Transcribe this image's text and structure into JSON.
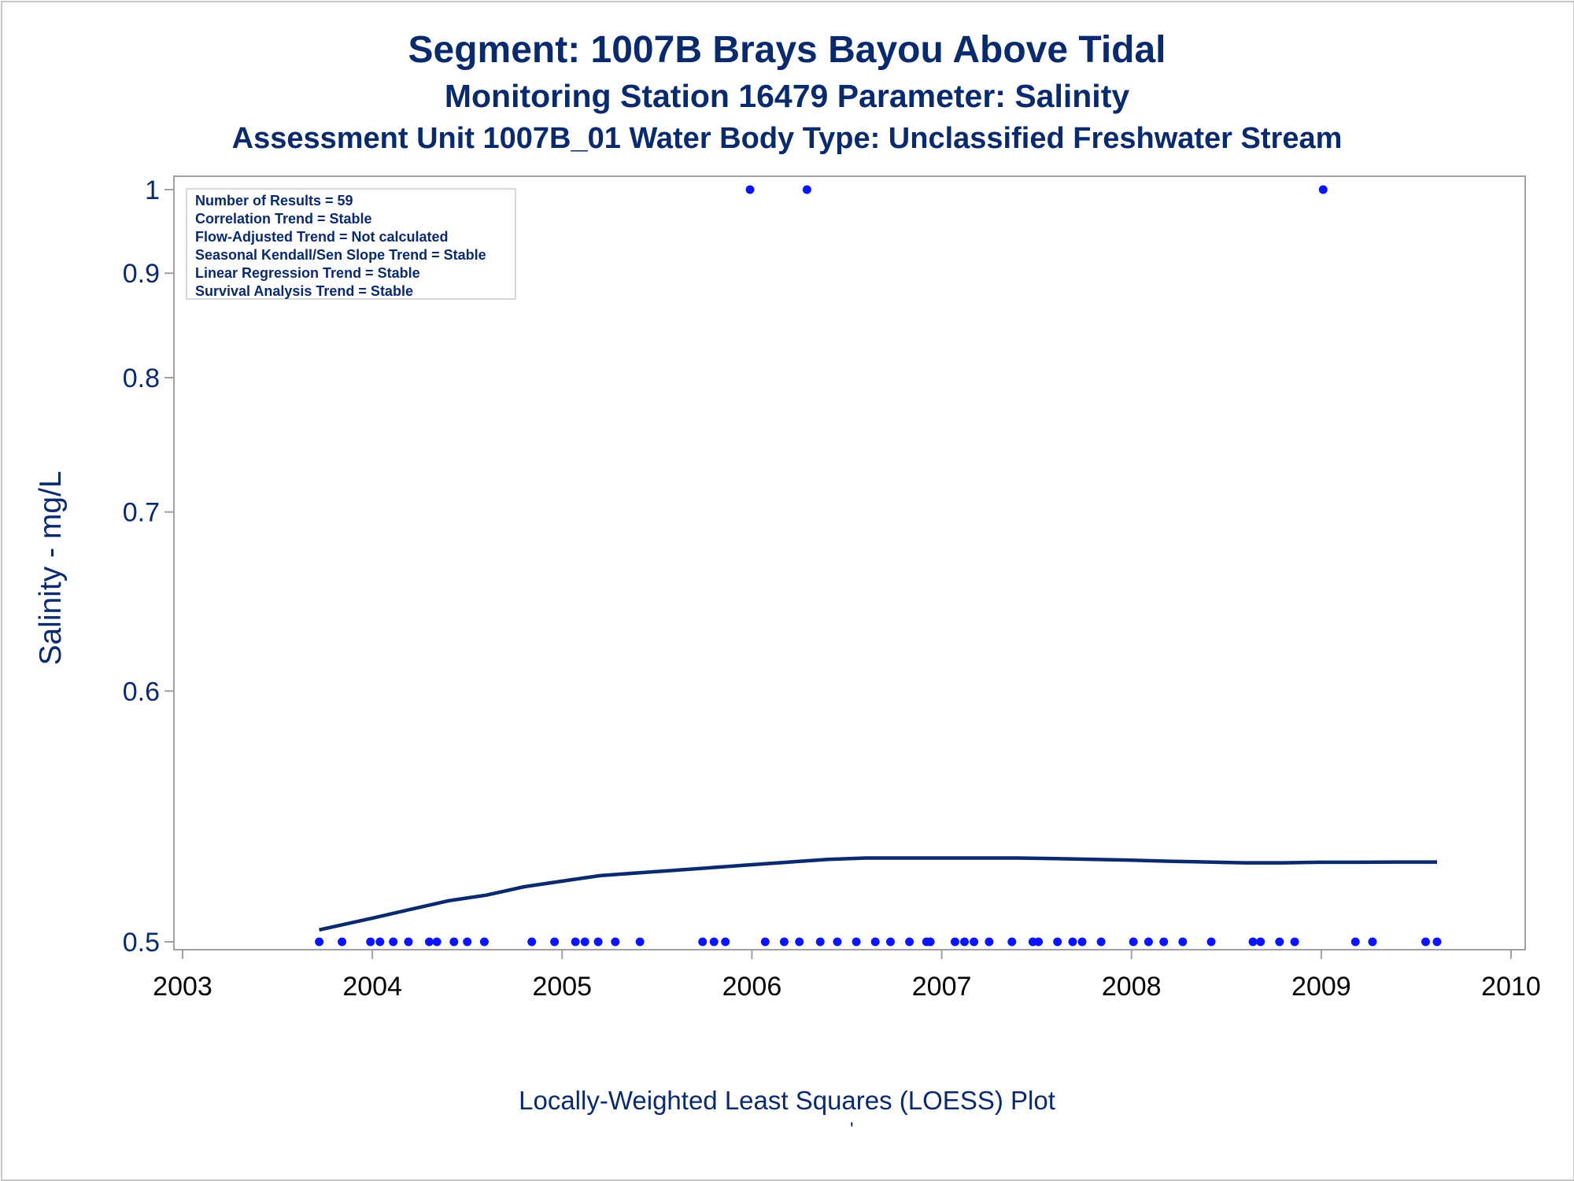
{
  "titles": {
    "line1": "Segment: 1007B  Brays Bayou Above Tidal",
    "line2": "Monitoring Station 16479 Parameter: Salinity",
    "line3": "Assessment Unit 1007B_01   Water Body Type: Unclassified Freshwater Stream"
  },
  "stats": [
    "Number of Results = 59",
    "Correlation Trend = Stable",
    "Flow-Adjusted Trend = Not calculated",
    "Seasonal Kendall/Sen Slope Trend = Stable",
    "Linear Regression Trend = Stable",
    "Survival Analysis Trend = Stable"
  ],
  "footnote": "Locally-Weighted Least Squares (LOESS) Plot",
  "footmark": "'",
  "colors": {
    "text": "#0a2a6e",
    "points": "#0a14ff",
    "loess": "#0a2a6e",
    "axis": "#a0a0a0"
  },
  "chart_data": {
    "type": "scatter",
    "ylabel": "Salinity - mg/L",
    "xlabel": "",
    "xlim": [
      2003,
      2010
    ],
    "ylim": [
      0.5,
      1.0
    ],
    "y_scale": "reciprocal",
    "xticks": [
      2003,
      2004,
      2005,
      2006,
      2007,
      2008,
      2009,
      2010
    ],
    "xtick_labels": [
      "2003",
      "2004",
      "2005",
      "2006",
      "2007",
      "2008",
      "2009",
      "2010"
    ],
    "yticks": [
      0.5,
      0.6,
      0.7,
      0.8,
      0.9,
      1.0
    ],
    "ytick_labels": [
      "0.5",
      "0.6",
      "0.7",
      "0.8",
      "0.9",
      "1"
    ],
    "grid": false,
    "series": [
      {
        "kind": "points",
        "x": [
          2003.72,
          2003.84,
          2003.99,
          2004.04,
          2004.11,
          2004.19,
          2004.3,
          2004.34,
          2004.43,
          2004.5,
          2004.59,
          2004.84,
          2004.96,
          2005.07,
          2005.12,
          2005.19,
          2005.28,
          2005.41,
          2005.74,
          2005.8,
          2005.86,
          2005.99,
          2006.07,
          2006.17,
          2006.25,
          2006.29,
          2006.36,
          2006.45,
          2006.55,
          2006.65,
          2006.73,
          2006.83,
          2006.92,
          2006.94,
          2007.07,
          2007.12,
          2007.17,
          2007.25,
          2007.37,
          2007.48,
          2007.51,
          2007.61,
          2007.69,
          2007.74,
          2007.84,
          2008.01,
          2008.09,
          2008.17,
          2008.27,
          2008.42,
          2008.64,
          2008.68,
          2008.78,
          2008.86,
          2009.01,
          2009.18,
          2009.27,
          2009.55,
          2009.61
        ],
        "y": [
          0.5,
          0.5,
          0.5,
          0.5,
          0.5,
          0.5,
          0.5,
          0.5,
          0.5,
          0.5,
          0.5,
          0.5,
          0.5,
          0.5,
          0.5,
          0.5,
          0.5,
          0.5,
          0.5,
          0.5,
          0.5,
          1.0,
          0.5,
          0.5,
          0.5,
          1.0,
          0.5,
          0.5,
          0.5,
          0.5,
          0.5,
          0.5,
          0.5,
          0.5,
          0.5,
          0.5,
          0.5,
          0.5,
          0.5,
          0.5,
          0.5,
          0.5,
          0.5,
          0.5,
          0.5,
          0.5,
          0.5,
          0.5,
          0.5,
          0.5,
          0.5,
          0.5,
          0.5,
          0.5,
          1.0,
          0.5,
          0.5,
          0.5,
          0.5
        ]
      },
      {
        "kind": "loess",
        "x": [
          2003.72,
          2004.0,
          2004.2,
          2004.4,
          2004.6,
          2004.8,
          2005.0,
          2005.2,
          2005.4,
          2005.6,
          2005.8,
          2006.0,
          2006.2,
          2006.4,
          2006.6,
          2006.8,
          2007.0,
          2007.2,
          2007.4,
          2007.6,
          2007.8,
          2008.0,
          2008.2,
          2008.4,
          2008.6,
          2008.8,
          2009.0,
          2009.2,
          2009.4,
          2009.61
        ],
        "y": [
          0.504,
          0.508,
          0.511,
          0.514,
          0.516,
          0.519,
          0.521,
          0.523,
          0.524,
          0.525,
          0.526,
          0.527,
          0.528,
          0.529,
          0.5295,
          0.5295,
          0.5295,
          0.5295,
          0.5295,
          0.5293,
          0.529,
          0.5287,
          0.5283,
          0.528,
          0.5277,
          0.5277,
          0.5279,
          0.5279,
          0.528,
          0.528
        ]
      }
    ]
  }
}
